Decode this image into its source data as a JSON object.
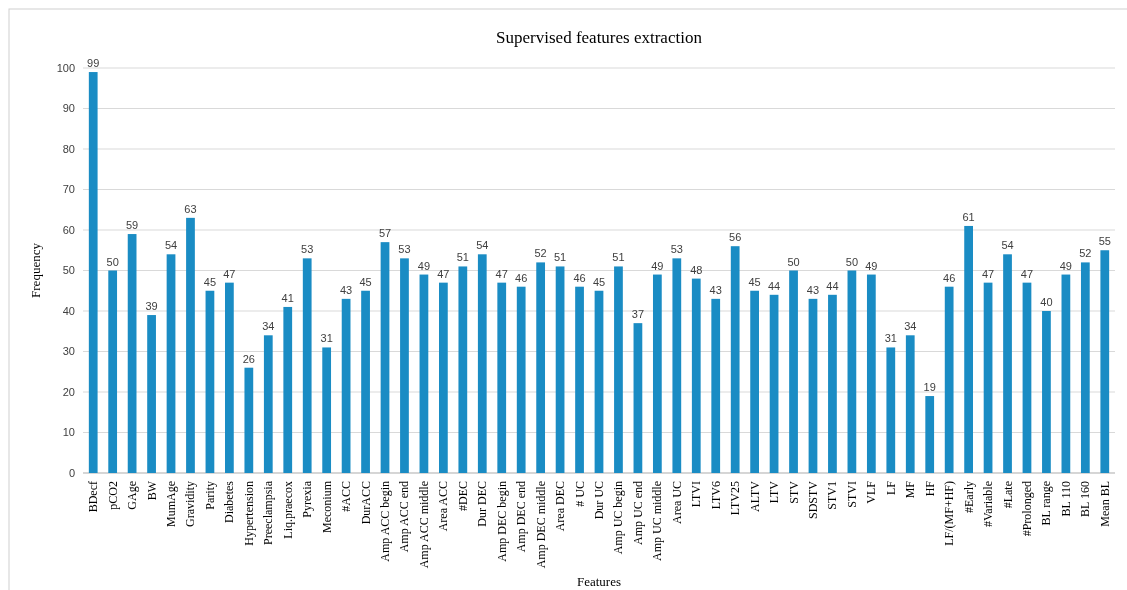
{
  "chart_data": {
    "type": "bar",
    "title": "Supervised features extraction",
    "xlabel": "Features",
    "ylabel": "Frequency",
    "categories": [
      "BDecf",
      "pCO2",
      "GAge",
      "BW",
      "MumAge",
      "Gravidity",
      "Parity",
      "Diabetes",
      "Hypertension",
      "Preeclampsia",
      "Liq.praecox",
      "Pyrexia",
      "Meconium",
      "#ACC",
      "DurACC",
      "Amp ACC begin",
      "Amp ACC end",
      "Amp ACC middle",
      "Area ACC",
      "#DEC",
      "Dur DEC",
      "Amp DEC begin",
      "Amp DEC end",
      "Amp DEC middle",
      "Area DEC",
      "# UC",
      "Dur UC",
      "Amp UC begin",
      "Amp UC end",
      "Amp UC middle",
      "Area UC",
      "LTVI",
      "LTV6",
      "LTV25",
      "ALTV",
      "LTV",
      "STV",
      "SDSTV",
      "STV1",
      "STVI",
      "VLF",
      "LF",
      "MF",
      "HF",
      "LF/(MF+HF)",
      "#Early",
      "#Variable",
      "#Late",
      "#Prolonged",
      "BL range",
      "BL 110",
      "BL 160",
      "Mean BL"
    ],
    "values": [
      99,
      50,
      59,
      39,
      54,
      63,
      45,
      47,
      26,
      34,
      41,
      53,
      31,
      43,
      45,
      57,
      53,
      49,
      47,
      51,
      54,
      47,
      46,
      52,
      51,
      46,
      45,
      51,
      37,
      49,
      53,
      48,
      43,
      56,
      45,
      44,
      50,
      43,
      44,
      50,
      49,
      31,
      34,
      19,
      46,
      61,
      47,
      54,
      47,
      40,
      49,
      52,
      55
    ],
    "color": "#1a8cc4",
    "ylim": [
      0,
      100
    ],
    "yticks": [
      0,
      10,
      20,
      30,
      40,
      50,
      60,
      70,
      80,
      90,
      100
    ],
    "grid": "y",
    "data_labels": true
  }
}
